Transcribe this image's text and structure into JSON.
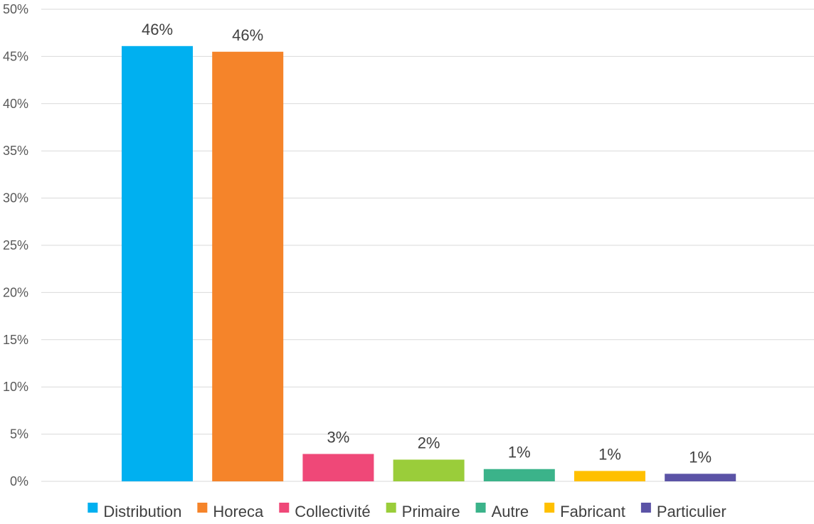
{
  "chart_data": {
    "type": "bar",
    "title": "",
    "xlabel": "",
    "ylabel": "",
    "ylim": [
      0,
      50
    ],
    "y_ticks": [
      0,
      5,
      10,
      15,
      20,
      25,
      30,
      35,
      40,
      45,
      50
    ],
    "y_tick_labels": [
      "0%",
      "5%",
      "10%",
      "15%",
      "20%",
      "25%",
      "30%",
      "35%",
      "40%",
      "45%",
      "50%"
    ],
    "grid": true,
    "legend_position": "bottom",
    "categories": [
      "Distribution",
      "Horeca",
      "Collectivité",
      "Primaire",
      "Autre",
      "Fabricant",
      "Particulier"
    ],
    "values": [
      46.1,
      45.5,
      2.9,
      2.3,
      1.3,
      1.1,
      0.8
    ],
    "data_labels": [
      "46%",
      "46%",
      "3%",
      "2%",
      "1%",
      "1%",
      "1%"
    ],
    "colors": [
      "#00b0f0",
      "#f5842a",
      "#ef4878",
      "#9acd3a",
      "#3bb38a",
      "#ffc000",
      "#5b53a6"
    ]
  }
}
